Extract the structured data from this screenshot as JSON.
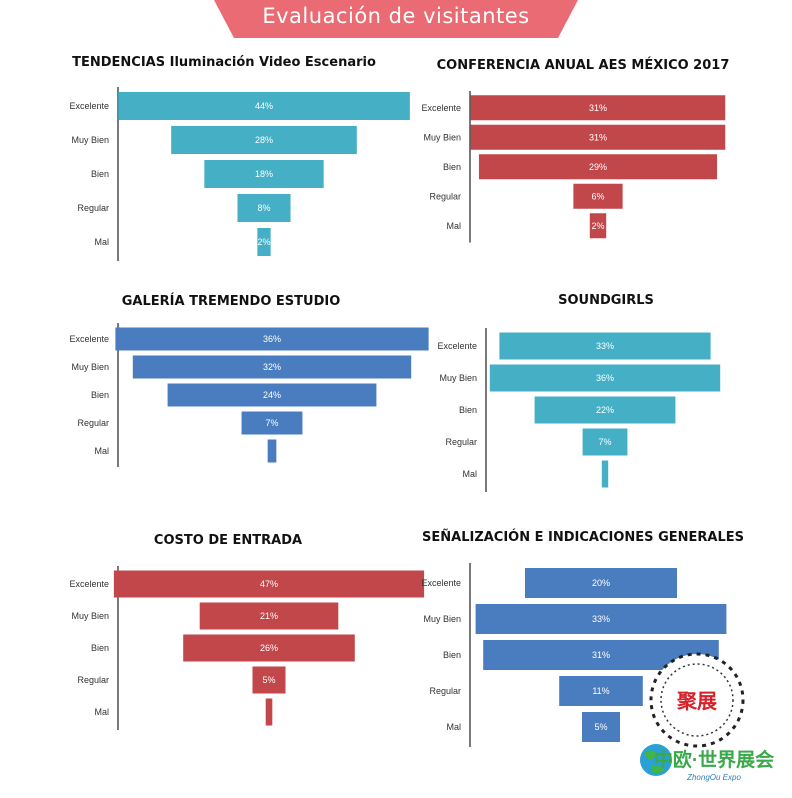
{
  "header": {
    "title": "Evaluación de visitantes",
    "banner_color": "#ea6b73"
  },
  "chart_data": [
    {
      "type": "bar",
      "title": "TENDENCIAS Iluminación Video Escenario",
      "categories": [
        "Excelente",
        "Muy Bien",
        "Bien",
        "Regular",
        "Mal"
      ],
      "values": [
        44,
        28,
        18,
        8,
        2
      ],
      "value_suffix": "%",
      "color": "#45afc6"
    },
    {
      "type": "bar",
      "title": "CONFERENCIA ANUAL AES MÉXICO 2017",
      "categories": [
        "Excelente",
        "Muy Bien",
        "Bien",
        "Regular",
        "Mal"
      ],
      "values": [
        31,
        31,
        29,
        6,
        2
      ],
      "value_suffix": "%",
      "color": "#c2474b"
    },
    {
      "type": "bar",
      "title": "GALERÍA TREMENDO ESTUDIO",
      "categories": [
        "Excelente",
        "Muy Bien",
        "Bien",
        "Regular",
        "Mal"
      ],
      "values": [
        36,
        32,
        24,
        7,
        1
      ],
      "value_labels": [
        "36%",
        "32%",
        "24%",
        "7%",
        ""
      ],
      "value_suffix": "%",
      "color": "#4a7dbf"
    },
    {
      "type": "bar",
      "title": "SOUNDGIRLS",
      "categories": [
        "Excelente",
        "Muy Bien",
        "Bien",
        "Regular",
        "Mal"
      ],
      "values": [
        33,
        36,
        22,
        7,
        1
      ],
      "value_labels": [
        "33%",
        "36%",
        "22%",
        "7%",
        ""
      ],
      "value_suffix": "%",
      "color": "#45afc6"
    },
    {
      "type": "bar",
      "title": "COSTO DE ENTRADA",
      "categories": [
        "Excelente",
        "Muy Bien",
        "Bien",
        "Regular",
        "Mal"
      ],
      "values": [
        47,
        21,
        26,
        5,
        1
      ],
      "value_labels": [
        "47%",
        "21%",
        "26%",
        "5%",
        ""
      ],
      "value_suffix": "%",
      "color": "#c2474b"
    },
    {
      "type": "bar",
      "title": "SEÑALIZACIÓN E INDICACIONES GENERALES",
      "categories": [
        "Excelente",
        "Muy Bien",
        "Bien",
        "Regular",
        "Mal"
      ],
      "values": [
        20,
        33,
        31,
        11,
        5
      ],
      "value_suffix": "%",
      "color": "#4a7dbf"
    }
  ],
  "watermark": {
    "seal_text": "聚展",
    "brand_text": "中欧·世界展会",
    "sub_text": "ZhongOu Expo"
  }
}
